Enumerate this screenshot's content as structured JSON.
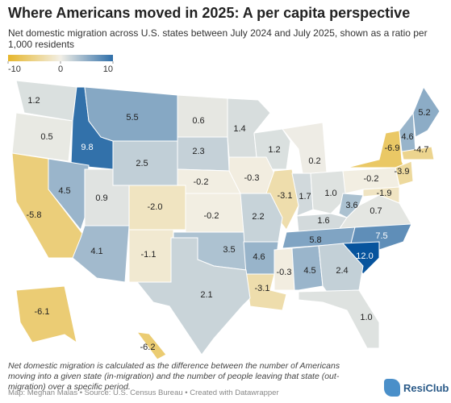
{
  "header": {
    "title": "Where Americans moved in 2025: A per capita perspective",
    "subtitle": "Net domestic migration across U.S. states between July 2024 and July 2025, shown as a ratio per 1,000 residents"
  },
  "map": {
    "type": "choropleth",
    "legend": {
      "ticks": [
        -10,
        0,
        10
      ],
      "colors": [
        "#e6b62b",
        "#f2efe6",
        "#2e6ea9"
      ]
    },
    "values": [
      1.2,
      0.5,
      9.8,
      5.5,
      2.5,
      0.6,
      2.3,
      1.4,
      1.2,
      0.2,
      -0.2,
      -0.3,
      -3.1,
      1.7,
      1.0,
      -0.2,
      -6.9,
      4.6,
      5.2,
      -4.7,
      -3.9,
      -1.9,
      4.5,
      0.9,
      -2.0,
      -0.2,
      2.2,
      1.6,
      3.6,
      0.7,
      -5.8,
      4.1,
      -1.1,
      3.5,
      4.6,
      5.8,
      7.5,
      12.0,
      -0.3,
      4.5,
      2.4,
      -3.1,
      2.1,
      1.0,
      -6.1,
      -6.2
    ],
    "value_labels": [
      "1.2",
      "0.5",
      "9.8",
      "5.5",
      "2.5",
      "0.6",
      "2.3",
      "1.4",
      "1.2",
      "0.2",
      "-0.2",
      "-0.3",
      "-3.1",
      "1.7",
      "1.0",
      "-0.2",
      "-6.9",
      "4.6",
      "5.2",
      "-4.7",
      "-3.9",
      "-1.9",
      "4.5",
      "0.9",
      "-2.0",
      "-0.2",
      "2.2",
      "1.6",
      "3.6",
      "0.7",
      "-5.8",
      "4.1",
      "-1.1",
      "3.5",
      "4.6",
      "5.8",
      "7.5",
      "12.0",
      "-0.3",
      "4.5",
      "2.4",
      "-3.1",
      "2.1",
      "1.0",
      "-6.1",
      "-6.2"
    ]
  },
  "footer": {
    "note": "Net domestic migration is calculated as the difference between the number of Americans moving into a given state (in-migration) and the number of people leaving that state (out-migration) over a specific period.",
    "credits": "Map: Meghan Malas • Source: U.S. Census Bureau • Created with Datawrapper",
    "logo": "ResiClub"
  }
}
